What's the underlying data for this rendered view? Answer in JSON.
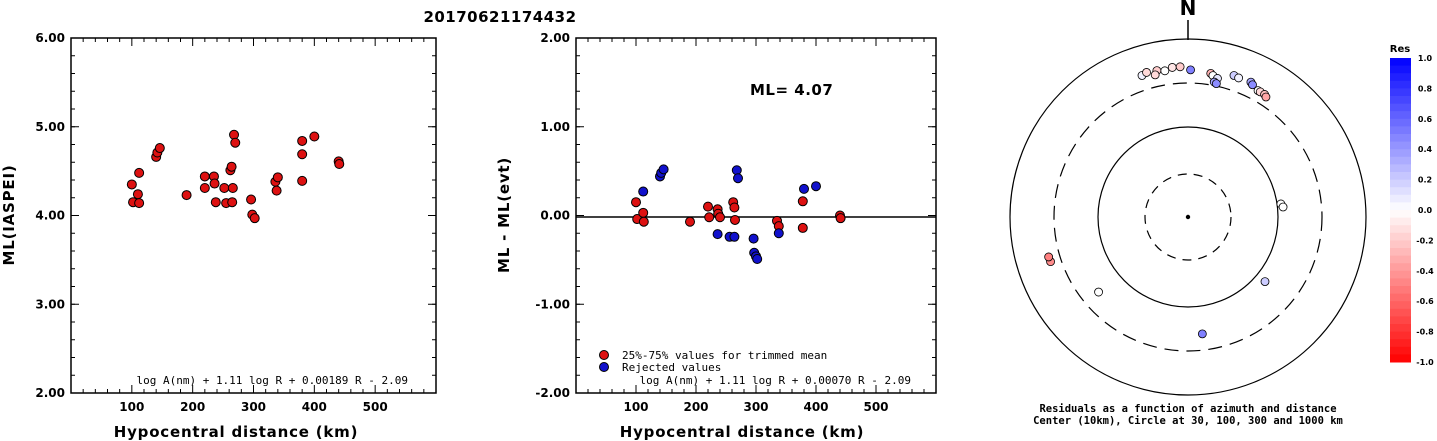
{
  "title": "20170621174432",
  "chart_data": [
    {
      "type": "scatter",
      "name": "ml-vs-distance",
      "xlabel": "Hypocentral distance (km)",
      "ylabel": "ML(IASPEI)",
      "xlim": [
        0,
        600
      ],
      "ylim": [
        2.0,
        6.0
      ],
      "xticks": [
        "100",
        "200",
        "300",
        "400",
        "500"
      ],
      "yticks": [
        "2.00",
        "3.00",
        "4.00",
        "5.00",
        "6.00"
      ],
      "formula": "log A(nm) + 1.11 log R + 0.00189 R - 2.09",
      "points": [
        {
          "x": 100,
          "y": 4.35
        },
        {
          "x": 102,
          "y": 4.15
        },
        {
          "x": 110,
          "y": 4.24
        },
        {
          "x": 112,
          "y": 4.14
        },
        {
          "x": 112,
          "y": 4.48
        },
        {
          "x": 140,
          "y": 4.66
        },
        {
          "x": 142,
          "y": 4.71
        },
        {
          "x": 146,
          "y": 4.76
        },
        {
          "x": 190,
          "y": 4.23
        },
        {
          "x": 220,
          "y": 4.44
        },
        {
          "x": 220,
          "y": 4.31
        },
        {
          "x": 235,
          "y": 4.44
        },
        {
          "x": 236,
          "y": 4.36
        },
        {
          "x": 238,
          "y": 4.15
        },
        {
          "x": 252,
          "y": 4.31
        },
        {
          "x": 255,
          "y": 4.14
        },
        {
          "x": 262,
          "y": 4.51
        },
        {
          "x": 264,
          "y": 4.55
        },
        {
          "x": 265,
          "y": 4.15
        },
        {
          "x": 266,
          "y": 4.31
        },
        {
          "x": 268,
          "y": 4.91
        },
        {
          "x": 270,
          "y": 4.82
        },
        {
          "x": 296,
          "y": 4.18
        },
        {
          "x": 298,
          "y": 4.01
        },
        {
          "x": 302,
          "y": 3.97
        },
        {
          "x": 336,
          "y": 4.38
        },
        {
          "x": 338,
          "y": 4.28
        },
        {
          "x": 340,
          "y": 4.43
        },
        {
          "x": 380,
          "y": 4.84
        },
        {
          "x": 380,
          "y": 4.69
        },
        {
          "x": 380,
          "y": 4.39
        },
        {
          "x": 400,
          "y": 4.89
        },
        {
          "x": 440,
          "y": 4.61
        },
        {
          "x": 441,
          "y": 4.58
        }
      ]
    },
    {
      "type": "scatter",
      "name": "residual-vs-distance",
      "xlabel": "Hypocentral distance (km)",
      "ylabel": "ML - ML(evt)",
      "xlim": [
        0,
        600
      ],
      "ylim": [
        -2.0,
        2.0
      ],
      "xticks": [
        "100",
        "200",
        "300",
        "400",
        "500"
      ],
      "yticks": [
        "-2.00",
        "-1.00",
        "0.00",
        "1.00",
        "2.00"
      ],
      "ml_label": "ML= 4.07",
      "formula": "log A(nm) + 1.11 log R + 0.00070 R - 2.09",
      "legend": [
        {
          "label": "25%-75% values for trimmed mean",
          "color": "#dd1111"
        },
        {
          "label": "Rejected values",
          "color": "#1111cc"
        }
      ],
      "series": [
        {
          "name": "25%-75% values for trimmed mean",
          "color": "#dd1111",
          "points": [
            {
              "x": 100,
              "y": 0.15
            },
            {
              "x": 102,
              "y": -0.04
            },
            {
              "x": 112,
              "y": 0.03
            },
            {
              "x": 113,
              "y": -0.07
            },
            {
              "x": 190,
              "y": -0.07
            },
            {
              "x": 220,
              "y": 0.1
            },
            {
              "x": 222,
              "y": -0.02
            },
            {
              "x": 236,
              "y": 0.07
            },
            {
              "x": 237,
              "y": 0.02
            },
            {
              "x": 240,
              "y": -0.02
            },
            {
              "x": 262,
              "y": 0.15
            },
            {
              "x": 264,
              "y": 0.09
            },
            {
              "x": 265,
              "y": -0.05
            },
            {
              "x": 335,
              "y": -0.06
            },
            {
              "x": 338,
              "y": -0.12
            },
            {
              "x": 378,
              "y": 0.16
            },
            {
              "x": 378,
              "y": -0.14
            },
            {
              "x": 440,
              "y": 0.0
            },
            {
              "x": 441,
              "y": -0.03
            }
          ]
        },
        {
          "name": "Rejected values",
          "color": "#1111cc",
          "points": [
            {
              "x": 112,
              "y": 0.27
            },
            {
              "x": 140,
              "y": 0.44
            },
            {
              "x": 142,
              "y": 0.48
            },
            {
              "x": 146,
              "y": 0.52
            },
            {
              "x": 236,
              "y": -0.21
            },
            {
              "x": 256,
              "y": -0.24
            },
            {
              "x": 264,
              "y": -0.24
            },
            {
              "x": 268,
              "y": 0.51
            },
            {
              "x": 270,
              "y": 0.42
            },
            {
              "x": 296,
              "y": -0.26
            },
            {
              "x": 297,
              "y": -0.42
            },
            {
              "x": 300,
              "y": -0.46
            },
            {
              "x": 302,
              "y": -0.49
            },
            {
              "x": 338,
              "y": -0.2
            },
            {
              "x": 380,
              "y": 0.3
            },
            {
              "x": 400,
              "y": 0.33
            }
          ]
        }
      ]
    },
    {
      "type": "scatter",
      "name": "residual-azimuth-map",
      "north_label": "N",
      "caption_line1": "Residuals as a function of azimuth and distance",
      "caption_line2": "Center (10km), Circle at 30, 100, 300 and 1000 km",
      "colorbar": {
        "title": "Res",
        "min": -1.0,
        "max": 1.0,
        "ticks": [
          "1.0",
          "0.8",
          "0.6",
          "0.4",
          "0.2",
          "0.0",
          "-0.2",
          "-0.4",
          "-0.6",
          "-0.8",
          "-1.0"
        ]
      },
      "stations": [
        {
          "az": -18,
          "dist": 450,
          "res": 0.05
        },
        {
          "az": -16,
          "dist": 470,
          "res": -0.15
        },
        {
          "az": -12,
          "dist": 460,
          "res": -0.2
        },
        {
          "az": -13,
          "dist": 415,
          "res": -0.15
        },
        {
          "az": -9,
          "dist": 440,
          "res": 0.0
        },
        {
          "az": -6,
          "dist": 470,
          "res": -0.1
        },
        {
          "az": -3,
          "dist": 470,
          "res": -0.2
        },
        {
          "az": 1,
          "dist": 430,
          "res": 0.5
        },
        {
          "az": 9,
          "dist": 410,
          "res": -0.3
        },
        {
          "az": 10,
          "dist": 390,
          "res": 0.0
        },
        {
          "az": 12,
          "dist": 370,
          "res": 0.1
        },
        {
          "az": 11,
          "dist": 330,
          "res": 0.35
        },
        {
          "az": 12,
          "dist": 320,
          "res": 0.45
        },
        {
          "az": 18,
          "dist": 450,
          "res": 0.2
        },
        {
          "az": 20,
          "dist": 440,
          "res": 0.05
        },
        {
          "az": 25,
          "dist": 450,
          "res": 0.35
        },
        {
          "az": 26,
          "dist": 430,
          "res": 0.45
        },
        {
          "az": 29,
          "dist": 400,
          "res": 0.0
        },
        {
          "az": 30,
          "dist": 400,
          "res": -0.15
        },
        {
          "az": 32,
          "dist": 400,
          "res": -0.25
        },
        {
          "az": 33,
          "dist": 385,
          "res": -0.35
        },
        {
          "az": 82,
          "dist": 110,
          "res": 0.0
        },
        {
          "az": 84,
          "dist": 115,
          "res": 0.0
        },
        {
          "az": 130,
          "dist": 130,
          "res": 0.2
        },
        {
          "az": 173,
          "dist": 200,
          "res": 0.5
        },
        {
          "az": 230,
          "dist": 195,
          "res": 0.0
        },
        {
          "az": 252,
          "dist": 400,
          "res": -0.45
        },
        {
          "az": 254,
          "dist": 405,
          "res": -0.5
        }
      ]
    }
  ]
}
